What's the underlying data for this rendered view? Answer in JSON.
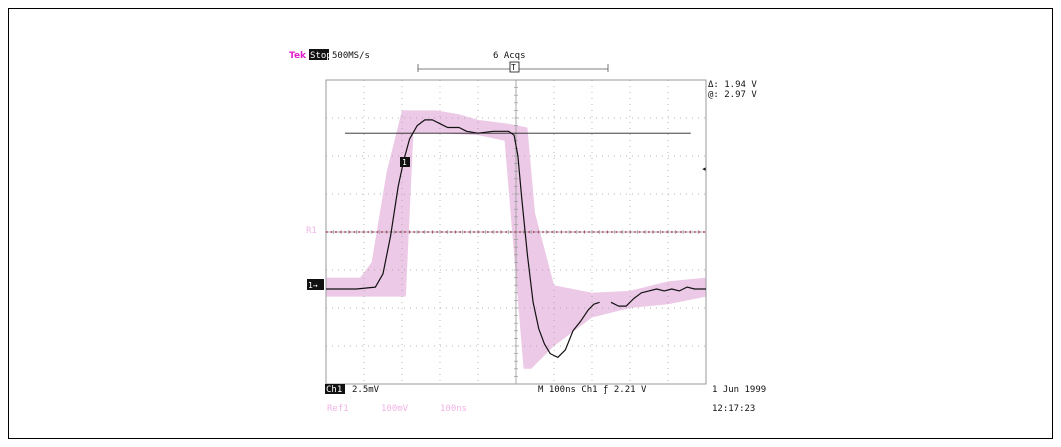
{
  "header": {
    "brand": "Tek",
    "state": "Stop",
    "rate": "500MS/s",
    "acqs": "6 Acqs",
    "trigger_marker": "T"
  },
  "cursor_readout": {
    "delta": "Δ: 1.94 V",
    "at": "@: 2.97 V"
  },
  "markers": {
    "ch1": "1",
    "ch1_ground": "1→",
    "ref": "R1"
  },
  "footer": {
    "ch1_label": "Ch1",
    "ch1_scale": "2.5mV",
    "time": "M 100ns Ch1 ƒ   2.21 V",
    "date": "1 Jun 1999",
    "clock": "12:17:23",
    "ref_label": "Ref1",
    "ref_scale": "100mV",
    "ref_time": "100ns"
  },
  "colors": {
    "brand": "#e020c8",
    "envelope": "#ecc9e6",
    "ref_trace": "#b0305a",
    "ref_text": "#f0b4e6",
    "grid": "#9a9a9a",
    "trace": "#111111"
  },
  "chart_data": {
    "type": "line",
    "xlabel": "",
    "ylabel": "",
    "xlim": [
      0,
      10
    ],
    "ylim": [
      -4,
      4
    ],
    "grid": true,
    "cursor_levels": [
      2.6
    ],
    "ref_level": 0,
    "series": [
      {
        "x": [
          0,
          0.8,
          1.3,
          1.5,
          1.7,
          1.9,
          2.05,
          2.2,
          2.4,
          2.6,
          2.8,
          3.0,
          3.2,
          3.5,
          3.7,
          4.0,
          4.4,
          4.8,
          4.95,
          5.05,
          5.15,
          5.3,
          5.45,
          5.6,
          5.75,
          5.9,
          6.1,
          6.3,
          6.5,
          6.7,
          6.9,
          7.05,
          7.2
        ],
        "y": [
          -1.5,
          -1.5,
          -1.45,
          -1.1,
          -0.1,
          1.2,
          1.9,
          2.45,
          2.8,
          2.95,
          2.95,
          2.85,
          2.75,
          2.75,
          2.65,
          2.6,
          2.65,
          2.65,
          2.55,
          2.0,
          0.9,
          -0.6,
          -1.85,
          -2.55,
          -2.95,
          -3.2,
          -3.3,
          -3.1,
          -2.6,
          -2.35,
          -2.05,
          -1.9,
          -1.85
        ]
      },
      {
        "x": [
          7.5,
          7.7,
          7.9,
          8.1,
          8.3,
          8.5,
          8.7,
          8.9,
          9.1,
          9.3,
          9.5,
          9.7,
          10
        ],
        "y": [
          -1.85,
          -1.95,
          -1.95,
          -1.75,
          -1.6,
          -1.55,
          -1.5,
          -1.55,
          -1.5,
          -1.55,
          -1.45,
          -1.5,
          -1.5
        ]
      }
    ],
    "envelope": {
      "x": [
        0,
        0.9,
        1.2,
        1.6,
        2.0,
        2.4,
        2.9,
        3.5,
        4.0,
        4.8,
        5.3,
        5.5,
        6.0,
        7.0,
        8.0,
        9.0,
        10,
        10,
        9.0,
        8.0,
        7.0,
        6.0,
        5.4,
        5.2,
        4.7,
        4.0,
        3.0,
        2.3,
        2.1,
        2.0,
        1.6,
        1.2,
        0.9,
        0
      ],
      "y": [
        -1.2,
        -1.2,
        -0.8,
        1.6,
        3.2,
        3.2,
        3.2,
        3.1,
        2.95,
        2.85,
        2.75,
        0.5,
        -1.4,
        -1.6,
        -1.55,
        -1.3,
        -1.2,
        -1.7,
        -1.9,
        -2.0,
        -2.25,
        -3.0,
        -3.6,
        -3.6,
        2.4,
        2.55,
        2.6,
        2.6,
        -1.7,
        -1.7,
        -1.7,
        -1.7,
        -1.7,
        -1.7
      ]
    }
  }
}
